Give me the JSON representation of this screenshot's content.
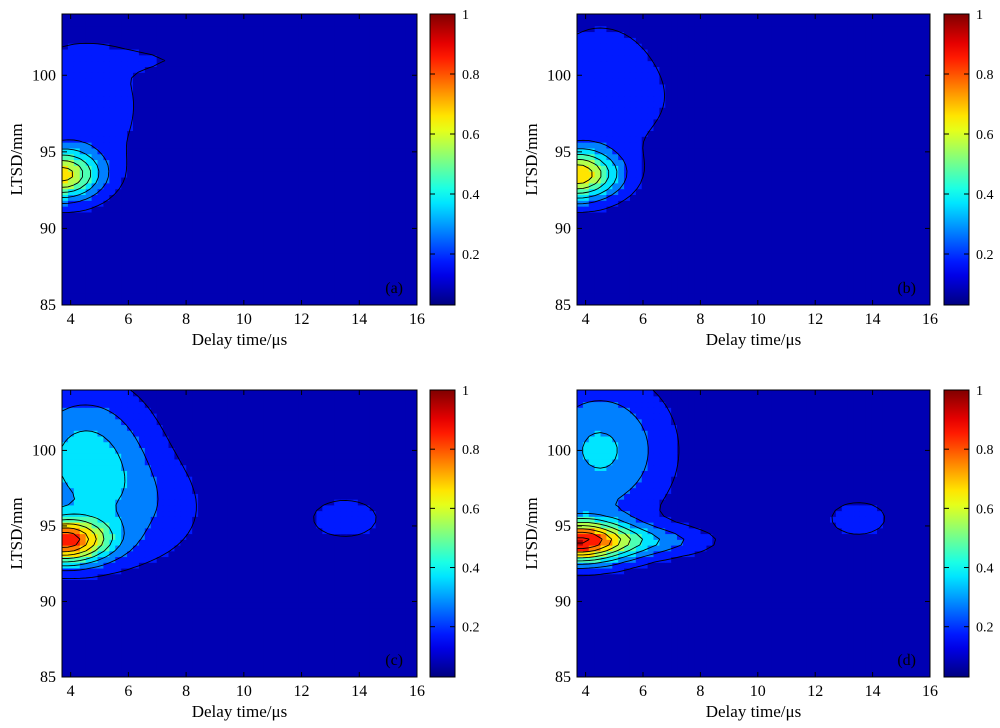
{
  "chart_data": [
    {
      "type": "contour",
      "panel_label": "(a)",
      "xlabel": "Delay time/μs",
      "ylabel": "LTSD/mm",
      "xlim": [
        3.7,
        16
      ],
      "ylim": [
        85,
        104
      ],
      "xticks": [
        4,
        6,
        8,
        10,
        12,
        14,
        16
      ],
      "yticks": [
        85,
        90,
        95,
        100
      ],
      "colorbar": {
        "colormap": "jet",
        "range": [
          0.03,
          1
        ],
        "ticks": [
          0.2,
          0.4,
          0.6,
          0.8,
          1
        ],
        "tick_labels": [
          "0.2",
          "0.4",
          "0.6",
          "0.8",
          "1"
        ]
      },
      "background_value": 0.06,
      "peaks": [
        {
          "t": 3.7,
          "l": 93.5,
          "value": 0.55,
          "spread_t": 1.3,
          "spread_l": 1.6
        },
        {
          "t": 4.5,
          "l": 98.0,
          "value": 0.12,
          "spread_t": 2.2,
          "spread_l": 5.0
        },
        {
          "t": 7.0,
          "l": 101.0,
          "value": 0.05,
          "spread_t": 4.0,
          "spread_l": 0.8
        }
      ]
    },
    {
      "type": "contour",
      "panel_label": "(b)",
      "xlabel": "Delay time/μs",
      "ylabel": "LTSD/mm",
      "xlim": [
        3.7,
        16
      ],
      "ylim": [
        85,
        104
      ],
      "xticks": [
        4,
        6,
        8,
        10,
        12,
        14,
        16
      ],
      "yticks": [
        85,
        90,
        95,
        100
      ],
      "colorbar": {
        "colormap": "jet",
        "range": [
          0.03,
          1
        ],
        "ticks": [
          0.2,
          0.4,
          0.6,
          0.8,
          1
        ],
        "tick_labels": [
          "0.2",
          "0.4",
          "0.6",
          "0.8",
          "1"
        ]
      },
      "background_value": 0.06,
      "peaks": [
        {
          "t": 3.7,
          "l": 93.5,
          "value": 0.6,
          "spread_t": 1.4,
          "spread_l": 1.6
        },
        {
          "t": 4.5,
          "l": 99.0,
          "value": 0.13,
          "spread_t": 2.3,
          "spread_l": 5.0
        },
        {
          "t": 9.0,
          "l": 98.0,
          "value": 0.04,
          "spread_t": 2.5,
          "spread_l": 4.0
        }
      ]
    },
    {
      "type": "contour",
      "panel_label": "(c)",
      "xlabel": "Delay time/μs",
      "ylabel": "LTSD/mm",
      "xlim": [
        3.7,
        16
      ],
      "ylim": [
        85,
        104
      ],
      "xticks": [
        4,
        6,
        8,
        10,
        12,
        14,
        16
      ],
      "yticks": [
        85,
        90,
        95,
        100
      ],
      "colorbar": {
        "colormap": "jet",
        "range": [
          0.03,
          1
        ],
        "ticks": [
          0.2,
          0.4,
          0.6,
          0.8,
          1
        ],
        "tick_labels": [
          "0.2",
          "0.4",
          "0.6",
          "0.8",
          "1"
        ]
      },
      "background_value": 0.06,
      "peaks": [
        {
          "t": 3.7,
          "l": 94.0,
          "value": 0.75,
          "spread_t": 1.6,
          "spread_l": 1.5
        },
        {
          "t": 4.5,
          "l": 99.5,
          "value": 0.3,
          "spread_t": 2.2,
          "spread_l": 4.5
        },
        {
          "t": 6.5,
          "l": 96.0,
          "value": 0.12,
          "spread_t": 2.2,
          "spread_l": 3.5
        },
        {
          "t": 13.5,
          "l": 95.5,
          "value": 0.09,
          "spread_t": 2.0,
          "spread_l": 2.2
        },
        {
          "t": 13.0,
          "l": 102.3,
          "value": 0.05,
          "spread_t": 1.5,
          "spread_l": 0.6
        }
      ]
    },
    {
      "type": "contour",
      "panel_label": "(d)",
      "xlabel": "Delay time/μs",
      "ylabel": "LTSD/mm",
      "xlim": [
        3.7,
        16
      ],
      "ylim": [
        85,
        104
      ],
      "xticks": [
        4,
        6,
        8,
        10,
        12,
        14,
        16
      ],
      "yticks": [
        85,
        90,
        95,
        100
      ],
      "colorbar": {
        "colormap": "jet",
        "range": [
          0.03,
          1
        ],
        "ticks": [
          0.2,
          0.4,
          0.6,
          0.8,
          1
        ],
        "tick_labels": [
          "0.2",
          "0.4",
          "0.6",
          "0.8",
          "1"
        ]
      },
      "background_value": 0.06,
      "peaks": [
        {
          "t": 3.7,
          "l": 94.0,
          "value": 0.8,
          "spread_t": 1.8,
          "spread_l": 1.4
        },
        {
          "t": 4.5,
          "l": 100.0,
          "value": 0.28,
          "spread_t": 2.3,
          "spread_l": 4.5
        },
        {
          "t": 6.5,
          "l": 94.0,
          "value": 0.18,
          "spread_t": 2.0,
          "spread_l": 1.0
        },
        {
          "t": 13.5,
          "l": 95.5,
          "value": 0.08,
          "spread_t": 2.2,
          "spread_l": 2.5
        },
        {
          "t": 13.0,
          "l": 102.3,
          "value": 0.05,
          "spread_t": 1.5,
          "spread_l": 0.6
        }
      ]
    }
  ]
}
